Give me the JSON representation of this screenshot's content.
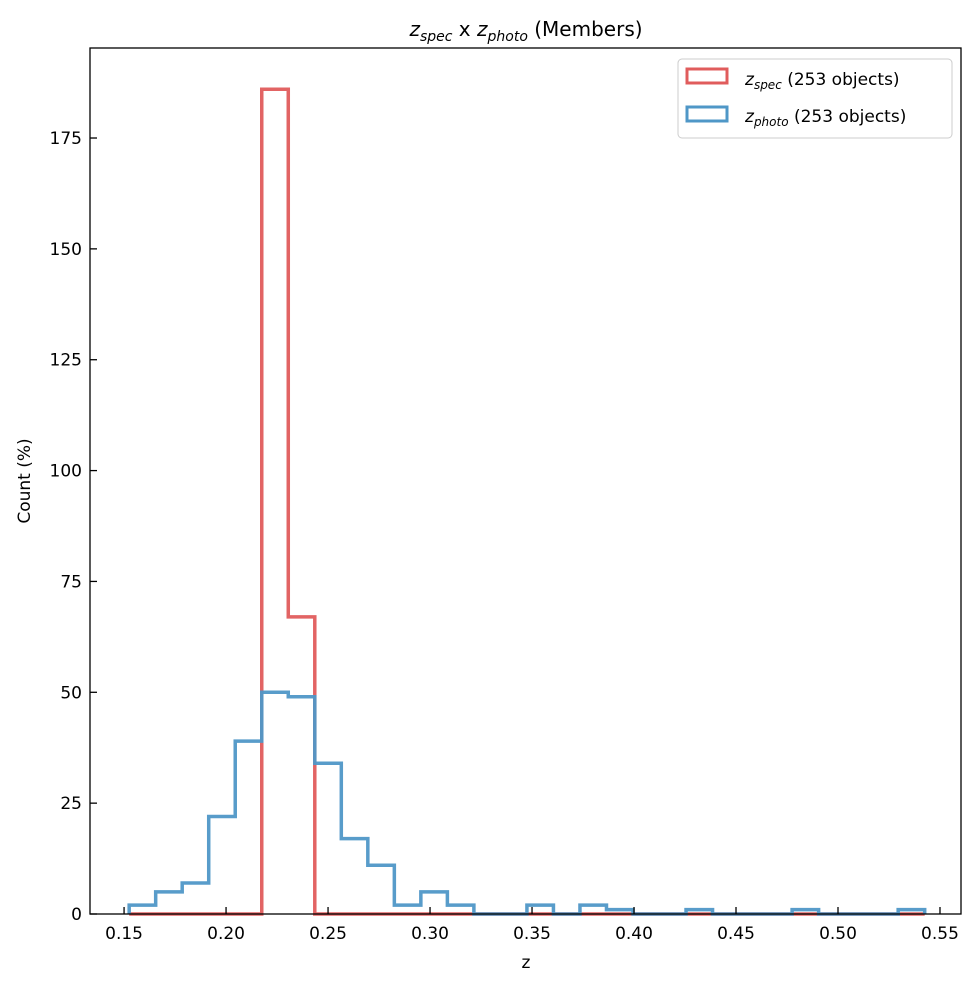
{
  "chart_data": {
    "type": "histogram",
    "title": "z_spec x z_photo (Members)",
    "title_parts": {
      "z1": "z",
      "sub1": "spec",
      "mid": " x ",
      "z2": "z",
      "sub2": "photo",
      "rest": " (Members)"
    },
    "xlabel": "z",
    "ylabel": "Count (%)",
    "xlim": [
      0.1333,
      0.5603
    ],
    "ylim": [
      0,
      195.3
    ],
    "xticks": [
      "0.15",
      "0.20",
      "0.25",
      "0.30",
      "0.35",
      "0.40",
      "0.45",
      "0.50",
      "0.55"
    ],
    "yticks": [
      "0",
      "25",
      "50",
      "75",
      "100",
      "125",
      "150",
      "175"
    ],
    "bin_start": 0.1525,
    "bin_width": 0.013,
    "legend_position": "upper-right",
    "series": [
      {
        "name": "z_spec (253 objects)",
        "label_z": "z",
        "label_sub": "spec",
        "label_rest": " (253 objects)",
        "color": "#e05c5c",
        "values": [
          0,
          0,
          0,
          0,
          0,
          186,
          67,
          0,
          0,
          0,
          0,
          0,
          0,
          0,
          0,
          0,
          0,
          0,
          0,
          0,
          0,
          0,
          0,
          0,
          0,
          0,
          0,
          0,
          0,
          0
        ]
      },
      {
        "name": "z_photo (253 objects)",
        "label_z": "z",
        "label_sub": "photo",
        "label_rest": " (253 objects)",
        "color": "#4f97c7",
        "values": [
          2,
          5,
          7,
          22,
          39,
          50,
          49,
          34,
          17,
          11,
          2,
          5,
          2,
          0,
          0,
          2,
          0,
          2,
          1,
          0,
          0,
          1,
          0,
          0,
          0,
          1,
          0,
          0,
          0,
          1
        ]
      }
    ]
  }
}
